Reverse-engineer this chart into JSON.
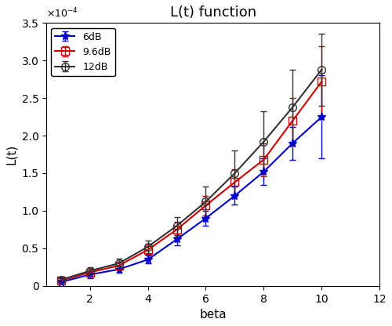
{
  "title": "L(t) function",
  "xlabel": "beta",
  "ylabel": "L(t)",
  "xlim": [
    0.5,
    12
  ],
  "ylim": [
    0,
    0.00035
  ],
  "xticks": [
    2,
    4,
    6,
    8,
    10,
    12
  ],
  "yticks": [
    0,
    5e-05,
    0.0001,
    0.00015,
    0.0002,
    0.00025,
    0.0003,
    0.00035
  ],
  "beta": [
    1,
    2,
    3,
    4,
    5,
    6,
    7,
    8,
    9,
    10
  ],
  "series": [
    {
      "label": "6dB",
      "color": "#0000cc",
      "marker": "*",
      "values": [
        5e-06,
        1.5e-05,
        2.2e-05,
        3.5e-05,
        6.2e-05,
        9e-05,
        0.00012,
        0.000152,
        0.00019,
        0.000225
      ],
      "yerr": [
        3e-06,
        5e-06,
        5e-06,
        5e-06,
        8e-06,
        1e-05,
        1.2e-05,
        1.8e-05,
        2.2e-05,
        5.5e-05
      ]
    },
    {
      "label": "9.6dB",
      "color": "#cc0000",
      "marker": "s",
      "marker_filled": false,
      "values": [
        7e-06,
        1.8e-05,
        2.7e-05,
        4.8e-05,
        7.5e-05,
        0.000107,
        0.000138,
        0.000168,
        0.00022,
        0.000272
      ],
      "yerr": [
        3e-06,
        5e-06,
        5e-06,
        7e-06,
        1e-05,
        1.3e-05,
        1.7e-05,
        2.2e-05,
        3e-05,
        4.7e-05
      ]
    },
    {
      "label": "12dB",
      "color": "#333333",
      "marker": "o",
      "marker_filled": false,
      "values": [
        8e-06,
        2e-05,
        3e-05,
        5.2e-05,
        8e-05,
        0.000112,
        0.00015,
        0.000192,
        0.000238,
        0.000288
      ],
      "yerr": [
        3e-06,
        5e-06,
        6e-06,
        8e-06,
        1.2e-05,
        2e-05,
        3e-05,
        4e-05,
        5e-05,
        4.8e-05
      ]
    }
  ],
  "legend_loc": "upper left",
  "title_fontsize": 13,
  "label_fontsize": 11,
  "tick_fontsize": 10,
  "linewidth": 1.5,
  "capsize": 3
}
